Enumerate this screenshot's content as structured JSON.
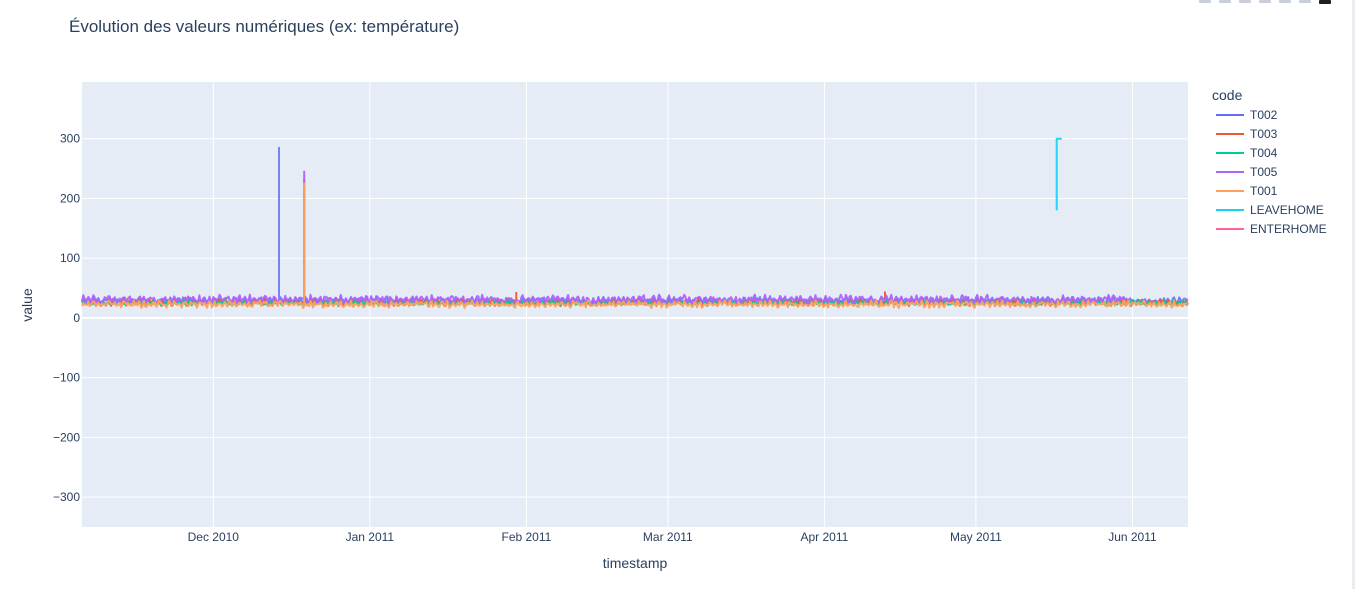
{
  "page": {
    "title": "Évolution des valeurs numériques (ex: température)"
  },
  "chart_data": {
    "type": "line",
    "title": "Évolution des valeurs numériques (ex: température)",
    "xlabel": "timestamp",
    "ylabel": "value",
    "xlim": [
      "2010-11-05",
      "2011-06-12"
    ],
    "ylim": [
      -350,
      395
    ],
    "x_ticks": [
      {
        "date": "2010-12-01",
        "label": "Dec 2010"
      },
      {
        "date": "2011-01-01",
        "label": "Jan 2011"
      },
      {
        "date": "2011-02-01",
        "label": "Feb 2011"
      },
      {
        "date": "2011-03-01",
        "label": "Mar 2011"
      },
      {
        "date": "2011-04-01",
        "label": "Apr 2011"
      },
      {
        "date": "2011-05-01",
        "label": "May 2011"
      },
      {
        "date": "2011-06-01",
        "label": "Jun 2011"
      }
    ],
    "y_ticks": [
      {
        "value": 300,
        "label": "300"
      },
      {
        "value": 200,
        "label": "200"
      },
      {
        "value": 100,
        "label": "100"
      },
      {
        "value": 0,
        "label": "0"
      },
      {
        "value": -100,
        "label": "−100"
      },
      {
        "value": -200,
        "label": "−200"
      },
      {
        "value": -300,
        "label": "−300"
      }
    ],
    "grid": true,
    "legend": {
      "title": "code",
      "placement": "right"
    },
    "series": [
      {
        "name": "T002",
        "color": "#636efa",
        "baseline": 29,
        "amplitude": 4,
        "start": "2010-11-05",
        "end": "2011-06-12",
        "spikes": [
          {
            "date": "2010-12-14",
            "value": 285
          }
        ]
      },
      {
        "name": "T003",
        "color": "#ef553b",
        "baseline": 26,
        "amplitude": 4,
        "start": "2010-11-05",
        "end": "2011-06-12",
        "spikes": [
          {
            "date": "2010-12-19",
            "value": 232
          },
          {
            "date": "2011-01-30",
            "value": 42
          },
          {
            "date": "2011-04-13",
            "value": 43
          }
        ]
      },
      {
        "name": "T004",
        "color": "#00cc96",
        "baseline": 25,
        "amplitude": 3,
        "start": "2010-11-05",
        "end": "2011-06-12",
        "spikes": []
      },
      {
        "name": "T005",
        "color": "#ab63fa",
        "baseline": 31,
        "amplitude": 5,
        "start": "2010-11-05",
        "end": "2011-05-31",
        "spikes": [
          {
            "date": "2010-12-19",
            "value": 245
          }
        ]
      },
      {
        "name": "T001",
        "color": "#ffa15a",
        "baseline": 23,
        "amplitude": 4,
        "start": "2010-11-05",
        "end": "2011-06-12",
        "spikes": [
          {
            "date": "2010-12-19",
            "value": 225
          }
        ]
      },
      {
        "name": "LEAVEHOME",
        "color": "#19d3f3",
        "points": [
          {
            "date": "2011-05-17",
            "value": 180
          },
          {
            "date": "2011-05-17",
            "value": 300
          },
          {
            "date": "2011-05-18",
            "value": 300
          }
        ]
      },
      {
        "name": "ENTERHOME",
        "color": "#ff6692",
        "points": []
      }
    ]
  }
}
